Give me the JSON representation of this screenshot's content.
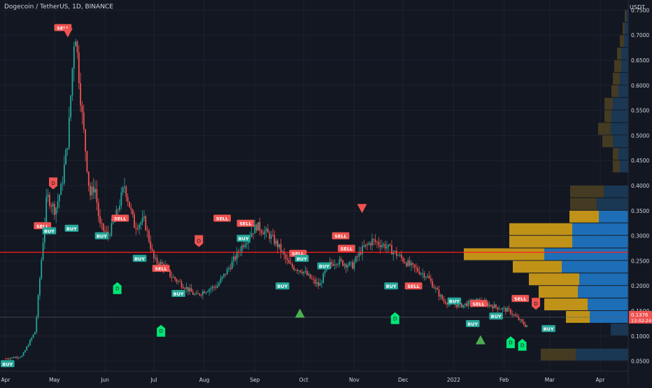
{
  "header": {
    "title": "Dogecoin / TetherUS, 1D, BINANCE",
    "currency": "USDT"
  },
  "last_price": {
    "value": "0.1376",
    "countdown": "13:02:24"
  },
  "colors": {
    "background": "#131722",
    "grid": "#1e222d",
    "up": "#26a69a",
    "down": "#ef5350",
    "text": "#d1d4dc",
    "poc_line": "#ff1e1e",
    "vp_value_area": "#2962ff",
    "vp_gold": "#d4a017",
    "vp_blue": "#1f78c8"
  },
  "chart_data": {
    "type": "candlestick",
    "title": "Dogecoin / TetherUS, 1D, BINANCE",
    "ylabel": "USDT",
    "ylim": [
      0.03,
      0.77
    ],
    "y_ticks": [
      "0.0500",
      "0.1000",
      "0.1500",
      "0.2000",
      "0.2500",
      "0.3000",
      "0.3500",
      "0.4000",
      "0.4500",
      "0.5000",
      "0.5500",
      "0.6000",
      "0.6500",
      "0.7000",
      "0.7500"
    ],
    "x_ticks": [
      "Apr",
      "May",
      "Jun",
      "Jul",
      "Aug",
      "Sep",
      "Oct",
      "Nov",
      "Dec",
      "2022",
      "Feb",
      "Mar",
      "Apr"
    ],
    "poc_level": 0.267,
    "last_close": 0.1376,
    "price_path_days": [
      0,
      10,
      18,
      25,
      30,
      34,
      38,
      42,
      46,
      49,
      51,
      54,
      57,
      62,
      66,
      72,
      78,
      84,
      90,
      96,
      100,
      108,
      115,
      120,
      128,
      136,
      145,
      152,
      160,
      165,
      172,
      180,
      186,
      190,
      195,
      200,
      210,
      215,
      222,
      230,
      238,
      245,
      255,
      265,
      275,
      285,
      295,
      305,
      315,
      322,
      330,
      335,
      340,
      345,
      350,
      355,
      360
    ],
    "price_path_values": [
      0.055,
      0.06,
      0.11,
      0.38,
      0.35,
      0.4,
      0.5,
      0.72,
      0.55,
      0.45,
      0.38,
      0.4,
      0.32,
      0.3,
      0.33,
      0.4,
      0.32,
      0.33,
      0.25,
      0.24,
      0.22,
      0.2,
      0.18,
      0.19,
      0.2,
      0.24,
      0.29,
      0.32,
      0.3,
      0.28,
      0.24,
      0.23,
      0.21,
      0.2,
      0.24,
      0.25,
      0.24,
      0.27,
      0.29,
      0.28,
      0.26,
      0.24,
      0.22,
      0.17,
      0.16,
      0.17,
      0.16,
      0.15,
      0.12,
      0.14,
      0.13,
      0.16,
      0.14,
      0.12,
      0.145,
      0.135,
      0.138
    ],
    "day_range": [
      0,
      360
    ],
    "volume_profile": [
      {
        "lo": 0.05,
        "hi": 0.075,
        "gold": 50,
        "blue": 75
      },
      {
        "lo": 0.1,
        "hi": 0.125,
        "gold": 0,
        "blue": 25
      },
      {
        "lo": 0.125,
        "hi": 0.15,
        "gold": 34,
        "blue": 55
      },
      {
        "lo": 0.15,
        "hi": 0.175,
        "gold": 62,
        "blue": 58
      },
      {
        "lo": 0.175,
        "hi": 0.2,
        "gold": 56,
        "blue": 72
      },
      {
        "lo": 0.2,
        "hi": 0.225,
        "gold": 72,
        "blue": 70
      },
      {
        "lo": 0.225,
        "hi": 0.25,
        "gold": 70,
        "blue": 95
      },
      {
        "lo": 0.25,
        "hi": 0.275,
        "gold": 115,
        "blue": 120
      },
      {
        "lo": 0.275,
        "hi": 0.3,
        "gold": 90,
        "blue": 80
      },
      {
        "lo": 0.3,
        "hi": 0.325,
        "gold": 90,
        "blue": 80
      },
      {
        "lo": 0.325,
        "hi": 0.35,
        "gold": 42,
        "blue": 42
      },
      {
        "lo": 0.35,
        "hi": 0.375,
        "gold": 38,
        "blue": 45
      },
      {
        "lo": 0.375,
        "hi": 0.4,
        "gold": 48,
        "blue": 35
      },
      {
        "lo": 0.425,
        "hi": 0.45,
        "gold": 10,
        "blue": 12
      },
      {
        "lo": 0.45,
        "hi": 0.475,
        "gold": 8,
        "blue": 14
      },
      {
        "lo": 0.475,
        "hi": 0.5,
        "gold": 15,
        "blue": 22
      },
      {
        "lo": 0.5,
        "hi": 0.525,
        "gold": 18,
        "blue": 25
      },
      {
        "lo": 0.525,
        "hi": 0.55,
        "gold": 10,
        "blue": 24
      },
      {
        "lo": 0.55,
        "hi": 0.575,
        "gold": 12,
        "blue": 22
      },
      {
        "lo": 0.575,
        "hi": 0.6,
        "gold": 10,
        "blue": 14
      },
      {
        "lo": 0.6,
        "hi": 0.625,
        "gold": 10,
        "blue": 12
      },
      {
        "lo": 0.625,
        "hi": 0.65,
        "gold": 10,
        "blue": 10
      },
      {
        "lo": 0.65,
        "hi": 0.675,
        "gold": 6,
        "blue": 10
      },
      {
        "lo": 0.675,
        "hi": 0.7,
        "gold": 6,
        "blue": 6
      },
      {
        "lo": 0.7,
        "hi": 0.725,
        "gold": 3,
        "blue": 5
      },
      {
        "lo": 0.725,
        "hi": 0.75,
        "gold": 2,
        "blue": 3
      }
    ],
    "signals": [
      {
        "kind": "label",
        "text": "BUY",
        "color": "#26a69a",
        "day": 2,
        "price": 0.045
      },
      {
        "kind": "label",
        "text": "SELL",
        "color": "#ef5350",
        "day": 38,
        "price": 0.32
      },
      {
        "kind": "label",
        "text": "BUY",
        "color": "#26a69a",
        "day": 45,
        "price": 0.31
      },
      {
        "kind": "label",
        "text": "SELL",
        "color": "#ef5350",
        "day": 59,
        "price": 0.715
      },
      {
        "kind": "label",
        "text": "BUY",
        "color": "#26a69a",
        "day": 68,
        "price": 0.315
      },
      {
        "kind": "label",
        "text": "BUY",
        "color": "#26a69a",
        "day": 99,
        "price": 0.3
      },
      {
        "kind": "label",
        "text": "SELL",
        "color": "#ef5350",
        "day": 118,
        "price": 0.335
      },
      {
        "kind": "label",
        "text": "BUY",
        "color": "#26a69a",
        "day": 138,
        "price": 0.255
      },
      {
        "kind": "label",
        "text": "SELL",
        "color": "#ef5350",
        "day": 160,
        "price": 0.235
      },
      {
        "kind": "label",
        "text": "BUY",
        "color": "#26a69a",
        "day": 178,
        "price": 0.185
      },
      {
        "kind": "label",
        "text": "SELL",
        "color": "#ef5350",
        "day": 223,
        "price": 0.335
      },
      {
        "kind": "label",
        "text": "SELL",
        "color": "#ef5350",
        "day": 247,
        "price": 0.325
      },
      {
        "kind": "label",
        "text": "BUY",
        "color": "#26a69a",
        "day": 245,
        "price": 0.295
      },
      {
        "kind": "label",
        "text": "BUY",
        "color": "#26a69a",
        "day": 285,
        "price": 0.2
      },
      {
        "kind": "label",
        "text": "SELL",
        "color": "#ef5350",
        "day": 301,
        "price": 0.265
      },
      {
        "kind": "label",
        "text": "BUY",
        "color": "#26a69a",
        "day": 305,
        "price": 0.255
      },
      {
        "kind": "label",
        "text": "BUY",
        "color": "#26a69a",
        "day": 328,
        "price": 0.24
      },
      {
        "kind": "label",
        "text": "SELL",
        "color": "#ef5350",
        "day": 351,
        "price": 0.275
      },
      {
        "kind": "label",
        "text": "SELL",
        "color": "#ef5350",
        "day": 345,
        "price": 0.3
      },
      {
        "kind": "label",
        "text": "BUY",
        "color": "#26a69a",
        "day": 397,
        "price": 0.2
      },
      {
        "kind": "label",
        "text": "SELL",
        "color": "#ef5350",
        "day": 420,
        "price": 0.2
      },
      {
        "kind": "label",
        "text": "BUY",
        "color": "#26a69a",
        "day": 462,
        "price": 0.17
      },
      {
        "kind": "label",
        "text": "SELL",
        "color": "#ef5350",
        "day": 487,
        "price": 0.165
      },
      {
        "kind": "label",
        "text": "BUY",
        "color": "#26a69a",
        "day": 481,
        "price": 0.125
      },
      {
        "kind": "label",
        "text": "BUY",
        "color": "#26a69a",
        "day": 505,
        "price": 0.14
      },
      {
        "kind": "label",
        "text": "SELL",
        "color": "#ef5350",
        "day": 530,
        "price": 0.175
      },
      {
        "kind": "label",
        "text": "BUY",
        "color": "#26a69a",
        "day": 559,
        "price": 0.115
      },
      {
        "kind": "pin",
        "text": "D",
        "color": "#ef5350",
        "dir": "down",
        "day": 49,
        "price": 0.405
      },
      {
        "kind": "pin",
        "text": "D",
        "color": "#00e676",
        "dir": "up",
        "day": 160,
        "price": 0.11
      },
      {
        "kind": "pin",
        "text": "D",
        "color": "#00e676",
        "dir": "up",
        "day": 115,
        "price": 0.195
      },
      {
        "kind": "pin",
        "text": "D",
        "color": "#ef5350",
        "dir": "down",
        "day": 199,
        "price": 0.29
      },
      {
        "kind": "pin",
        "text": "D",
        "color": "#00e676",
        "dir": "up",
        "day": 401,
        "price": 0.135
      },
      {
        "kind": "pin",
        "text": "D",
        "color": "#ef5350",
        "dir": "down",
        "day": 546,
        "price": 0.165
      },
      {
        "kind": "pin",
        "text": "D",
        "color": "#00e676",
        "dir": "up",
        "day": 520,
        "price": 0.087
      },
      {
        "kind": "pin",
        "text": "D",
        "color": "#00e676",
        "dir": "up",
        "day": 532,
        "price": 0.082
      },
      {
        "kind": "tri",
        "color": "#ef5350",
        "dir": "down",
        "day": 64,
        "price": 0.705
      },
      {
        "kind": "tri",
        "color": "#4caf50",
        "dir": "up",
        "day": 303,
        "price": 0.145
      },
      {
        "kind": "tri",
        "color": "#ef5350",
        "dir": "down",
        "day": 367,
        "price": 0.355
      },
      {
        "kind": "tri",
        "color": "#4caf50",
        "dir": "up",
        "day": 489,
        "price": 0.092
      }
    ]
  }
}
